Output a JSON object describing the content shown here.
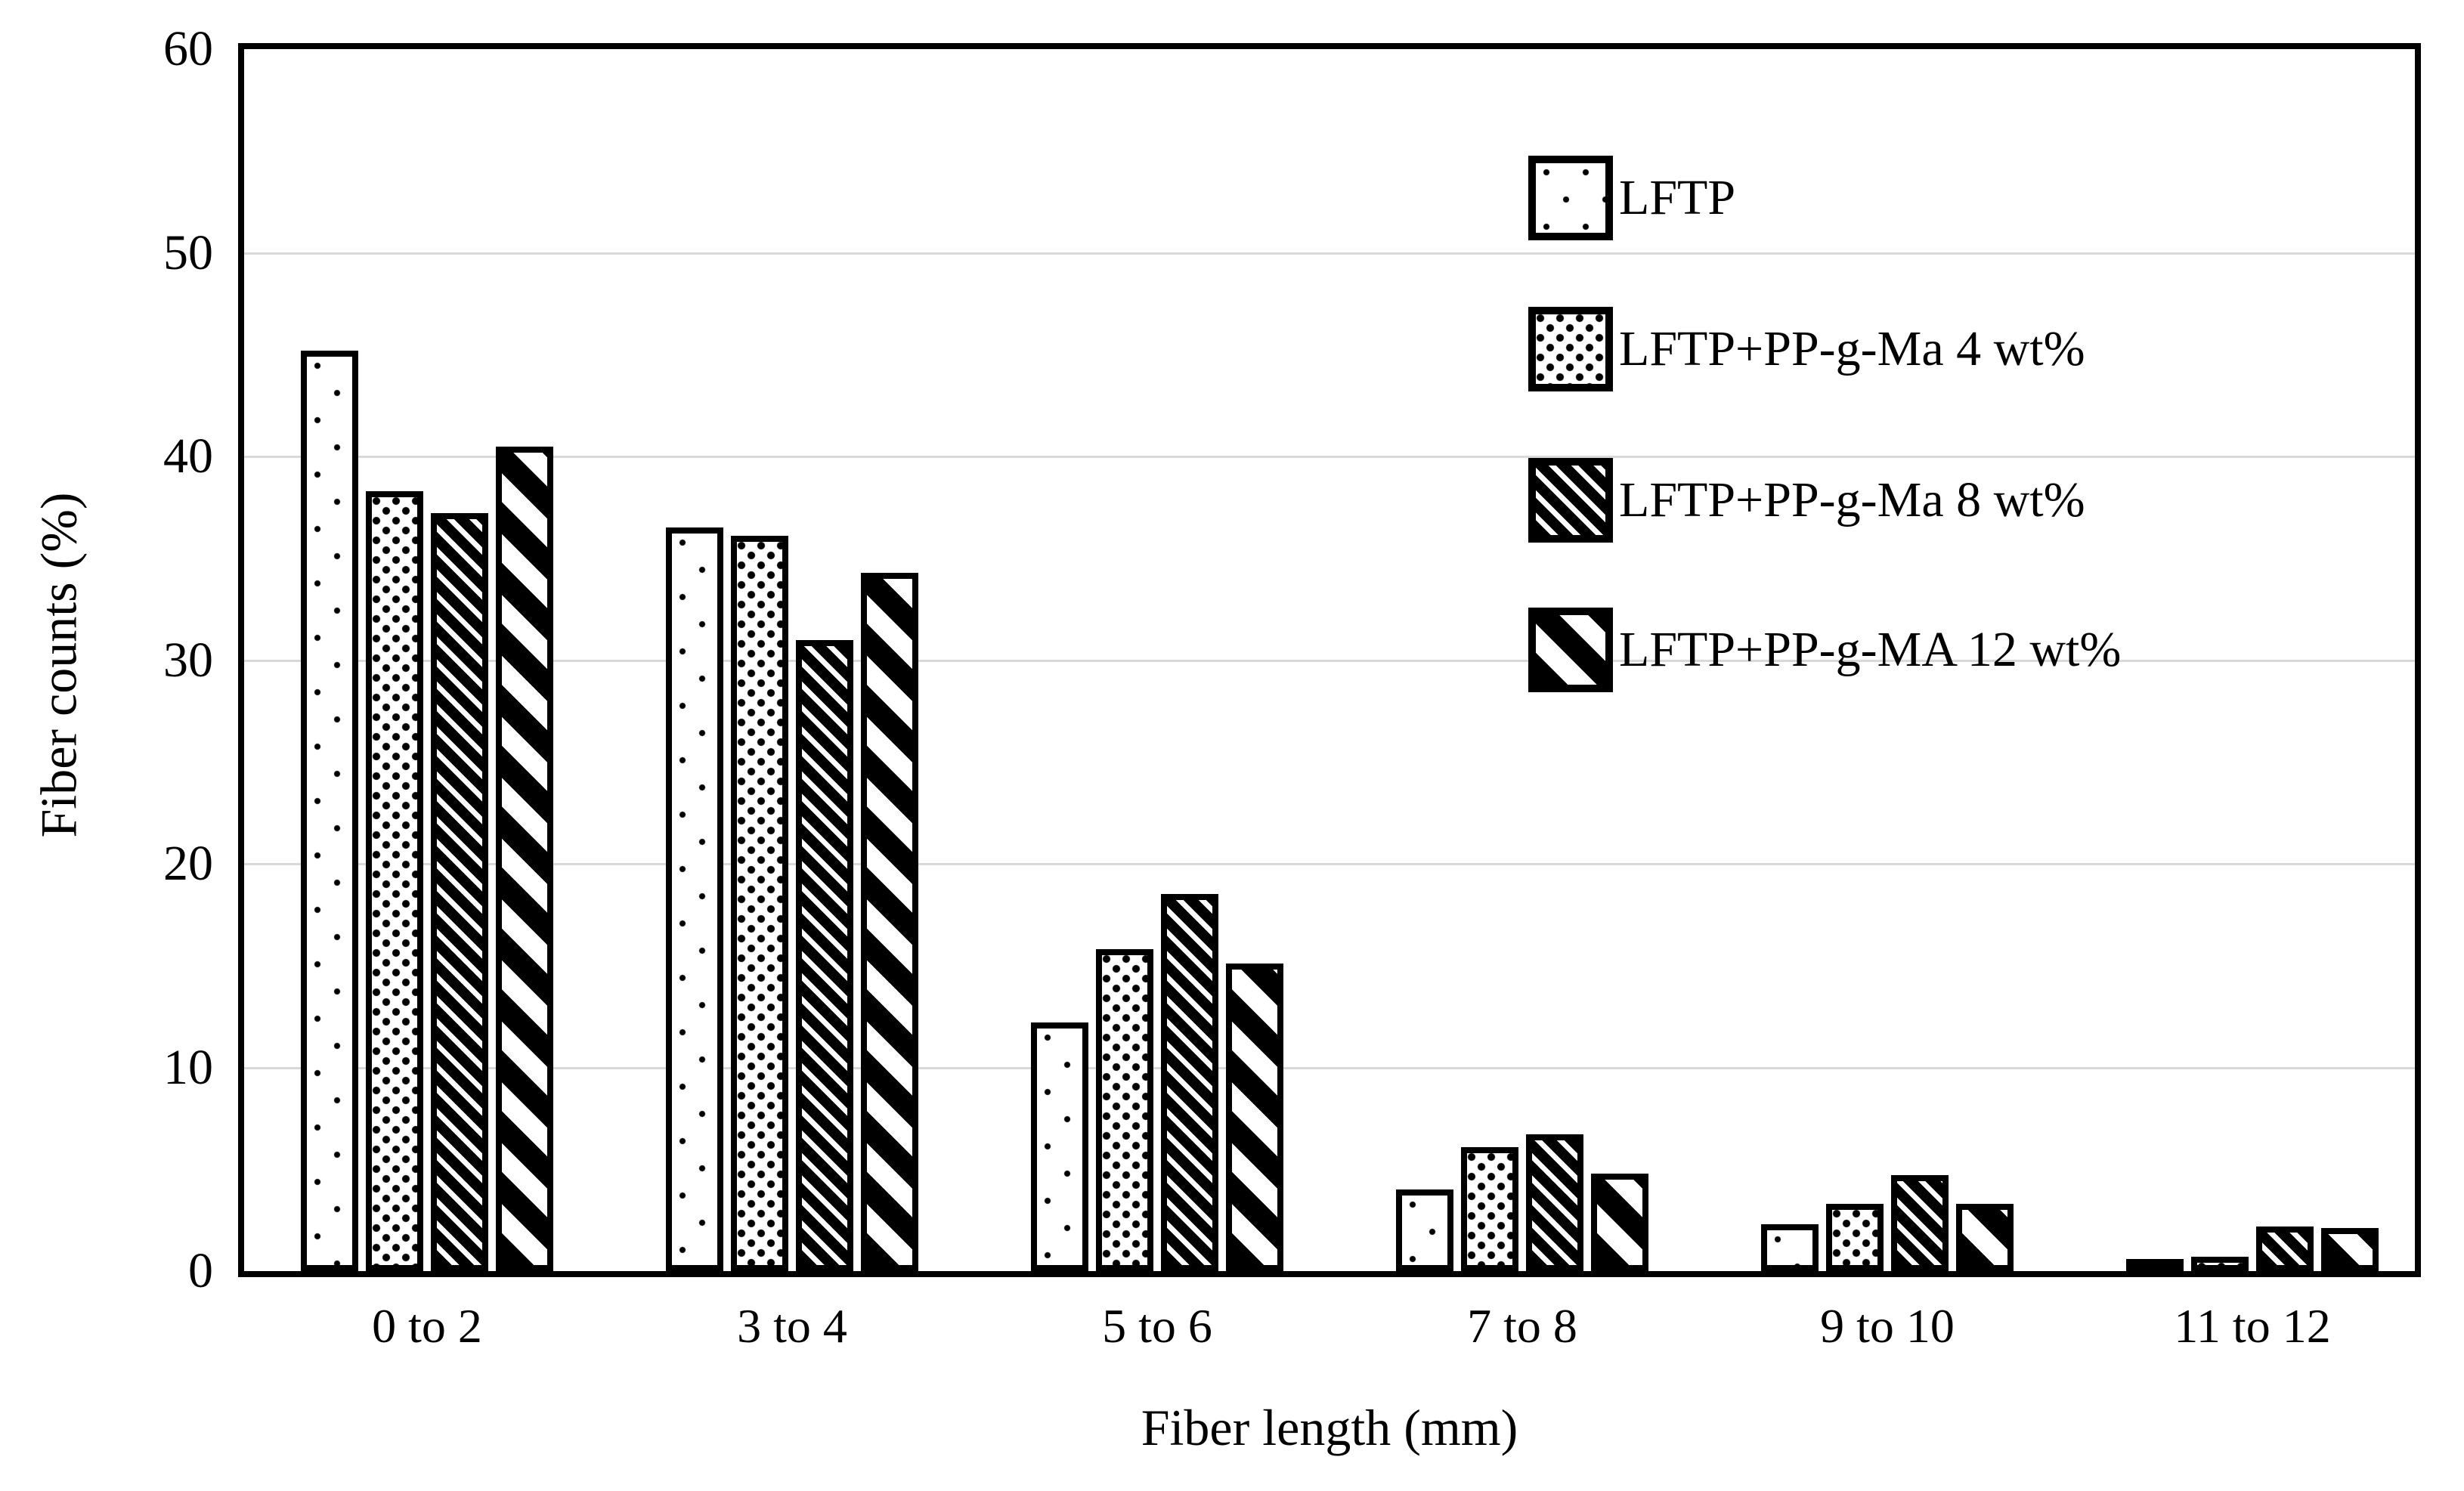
{
  "chart_data": {
    "type": "bar",
    "title": "",
    "xlabel": "Fiber length (mm)",
    "ylabel": "Fiber counts (%)",
    "ylim": [
      0,
      60
    ],
    "yticks": [
      0,
      10,
      20,
      30,
      40,
      50,
      60
    ],
    "categories": [
      "0 to 2",
      "3 to 4",
      "5 to 6",
      "7 to 8",
      "9 to 10",
      "11 to 12"
    ],
    "series": [
      {
        "name": "LFTP",
        "pattern": "sparse-dot-pattern",
        "values": [
          45.2,
          36.5,
          12.2,
          4.0,
          2.3,
          0.3
        ]
      },
      {
        "name": "LFTP+PP-g-Ma 4 wt%",
        "pattern": "dense-dot-pattern",
        "values": [
          38.3,
          36.1,
          15.8,
          6.1,
          3.3,
          0.7
        ]
      },
      {
        "name": "LFTP+PP-g-Ma 8 wt%",
        "pattern": "thin-diagonal-hatch-pattern",
        "values": [
          37.2,
          31.0,
          18.5,
          6.7,
          4.7,
          2.2
        ]
      },
      {
        "name": "LFTP+PP-g-MA 12 wt%",
        "pattern": "wide-diagonal-stripe-pattern",
        "values": [
          40.5,
          34.3,
          15.1,
          4.8,
          3.3,
          2.1
        ]
      }
    ],
    "legend_position": "inside-upper-right",
    "grid": "horizontal",
    "colors": {
      "foreground": "#000000",
      "background": "#ffffff",
      "gridline": "#d9d9d9"
    }
  }
}
